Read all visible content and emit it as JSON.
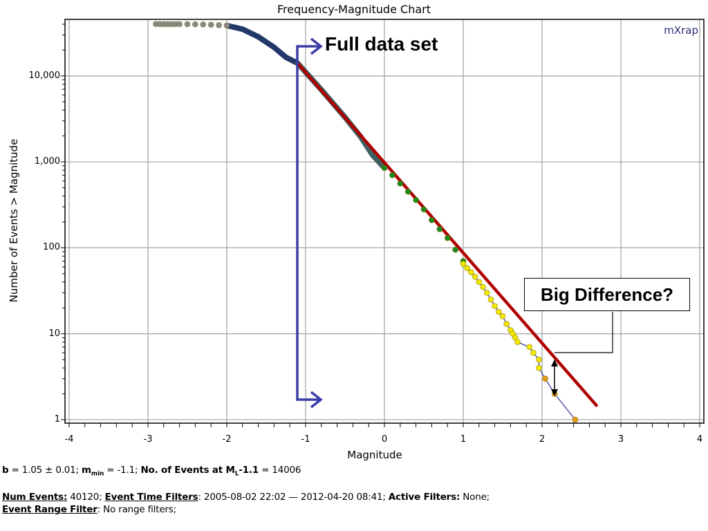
{
  "chart_data": {
    "type": "scatter",
    "title": "Frequency-Magnitude Chart",
    "xlabel": "Magnitude",
    "ylabel": "Number of Events > Magnitude",
    "xlim": [
      -4,
      4
    ],
    "ylim": [
      1,
      40120
    ],
    "yscale": "log",
    "grid": true,
    "x_ticks": [
      "-4",
      "-3",
      "-2",
      "-1",
      "0",
      "1",
      "2",
      "3",
      "4"
    ],
    "y_ticks": [
      {
        "value": 1,
        "label": "1"
      },
      {
        "value": 10,
        "label": "10"
      },
      {
        "value": 100,
        "label": "100"
      },
      {
        "value": 1000,
        "label": "1,000"
      },
      {
        "value": 10000,
        "label": "10,000"
      }
    ],
    "series": [
      {
        "color": "#8a8a8a",
        "style": "dots",
        "points": [
          [
            -2.9,
            40120
          ],
          [
            -2.85,
            40110
          ],
          [
            -2.8,
            40100
          ],
          [
            -2.75,
            40090
          ],
          [
            -2.7,
            40080
          ],
          [
            -2.65,
            40060
          ],
          [
            -2.6,
            40050
          ],
          [
            -2.5,
            40000
          ],
          [
            -2.4,
            39900
          ],
          [
            -2.3,
            39700
          ],
          [
            -2.2,
            39400
          ],
          [
            -2.1,
            39000
          ],
          [
            -2.0,
            38600
          ]
        ]
      },
      {
        "color": "#23386b",
        "style": "thick",
        "points": [
          [
            -2.0,
            38600
          ],
          [
            -1.8,
            35000
          ],
          [
            -1.6,
            28500
          ],
          [
            -1.4,
            21500
          ],
          [
            -1.25,
            16500
          ],
          [
            -1.1,
            14006
          ]
        ]
      },
      {
        "color": "#3f5f60",
        "style": "thick",
        "points": [
          [
            -1.1,
            14006
          ],
          [
            -0.8,
            6900
          ],
          [
            -0.5,
            3300
          ],
          [
            -0.3,
            1950
          ],
          [
            -0.15,
            1200
          ],
          [
            0,
            850
          ]
        ]
      },
      {
        "color": "#1c8a1c",
        "style": "dots",
        "points": [
          [
            0,
            850
          ],
          [
            0.1,
            700
          ],
          [
            0.2,
            560
          ],
          [
            0.3,
            450
          ],
          [
            0.4,
            360
          ],
          [
            0.5,
            280
          ],
          [
            0.6,
            210
          ],
          [
            0.7,
            165
          ],
          [
            0.8,
            130
          ],
          [
            0.9,
            95
          ],
          [
            1.0,
            70
          ]
        ]
      },
      {
        "color": "#f2e600",
        "style": "dots",
        "points": [
          [
            1.0,
            65
          ],
          [
            1.05,
            58
          ],
          [
            1.1,
            52
          ],
          [
            1.15,
            46
          ],
          [
            1.2,
            40
          ],
          [
            1.25,
            35
          ],
          [
            1.3,
            30
          ],
          [
            1.35,
            25
          ],
          [
            1.4,
            21
          ],
          [
            1.45,
            18
          ],
          [
            1.5,
            16
          ],
          [
            1.55,
            13
          ],
          [
            1.6,
            11
          ],
          [
            1.63,
            10
          ],
          [
            1.66,
            9
          ],
          [
            1.69,
            8
          ],
          [
            1.84,
            7
          ],
          [
            1.89,
            6
          ],
          [
            1.96,
            5
          ],
          [
            1.96,
            4
          ]
        ]
      },
      {
        "color": "#e39a10",
        "style": "dots",
        "points": [
          [
            2.04,
            3
          ],
          [
            2.16,
            2
          ],
          [
            2.42,
            1
          ]
        ]
      }
    ],
    "tail_line_color": "#2b2f9a",
    "fit_line": {
      "color": "#b00000",
      "b": 1.05,
      "points": [
        [
          -1.1,
          14006
        ],
        [
          2.7,
          1.43
        ]
      ]
    },
    "annotations": {
      "full_data_set": "Full data set",
      "big_difference": "Big Difference?",
      "arrow_color": "#3b3ba8"
    }
  },
  "branding": {
    "logo": "mXrap"
  },
  "stats": {
    "b_label": "b",
    "b_value": " = 1.05 ± 0.01; ",
    "mmin_label": "m",
    "mmin_sub": "min",
    "mmin_value": " = -1.1; ",
    "events_label": "No. of Events at M",
    "events_sub": "L",
    "events_label2": "-1.1",
    "events_value": " = 14006"
  },
  "filters": {
    "num_events_label": "Num Events:",
    "num_events_value": " 40120; ",
    "time_filters_label": "Event Time Filters",
    "time_filters_value": ": 2005-08-02 22:02 — 2012-04-20 08:41; ",
    "active_filters_label": "Active Filters:",
    "active_filters_value": " None;",
    "range_filter_label": "Event Range Filter",
    "range_filter_value": ": No range filters;"
  }
}
